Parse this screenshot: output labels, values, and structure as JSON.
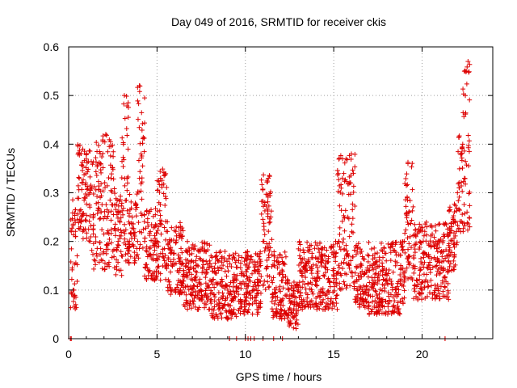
{
  "chart_data": {
    "type": "scatter",
    "title": "Day 049 of 2016, SRMTID for receiver ckis",
    "xlabel": "GPS time / hours",
    "ylabel": "SRMTID / TECUs",
    "xlim": [
      0,
      24
    ],
    "ylim": [
      0,
      0.6
    ],
    "xticks": [
      0,
      5,
      10,
      15,
      20
    ],
    "yticks": [
      0,
      0.1,
      0.2,
      0.3,
      0.4,
      0.5,
      0.6
    ],
    "xtick_labels": [
      "0",
      "5",
      "10",
      "15",
      "20"
    ],
    "ytick_labels": [
      "0",
      "0.1",
      "0.2",
      "0.3",
      "0.4",
      "0.5",
      "0.6"
    ],
    "grid": true,
    "marker": "+",
    "series_color": "#dd0000",
    "series": [
      {
        "name": "SRMTID",
        "points": [
          [
            0.1,
            0.0
          ],
          [
            0.15,
            0.22
          ],
          [
            0.3,
            0.1
          ],
          [
            0.4,
            0.07
          ],
          [
            0.6,
            0.33
          ],
          [
            0.8,
            0.39
          ],
          [
            1.0,
            0.38
          ],
          [
            1.2,
            0.3
          ],
          [
            1.5,
            0.16
          ],
          [
            1.8,
            0.36
          ],
          [
            2.1,
            0.42
          ],
          [
            2.4,
            0.33
          ],
          [
            2.8,
            0.2
          ],
          [
            3.0,
            0.13
          ],
          [
            3.1,
            0.4
          ],
          [
            3.15,
            0.5
          ],
          [
            3.3,
            0.33
          ],
          [
            3.6,
            0.25
          ],
          [
            3.9,
            0.2
          ],
          [
            4.0,
            0.52
          ],
          [
            4.1,
            0.38
          ],
          [
            4.3,
            0.2
          ],
          [
            4.6,
            0.14
          ],
          [
            5.0,
            0.2
          ],
          [
            5.2,
            0.33
          ],
          [
            5.5,
            0.15
          ],
          [
            6.0,
            0.1
          ],
          [
            6.5,
            0.14
          ],
          [
            7.0,
            0.12
          ],
          [
            7.5,
            0.08
          ],
          [
            8.0,
            0.12
          ],
          [
            8.5,
            0.06
          ],
          [
            9.0,
            0.1
          ],
          [
            9.1,
            0.0
          ],
          [
            9.5,
            0.12
          ],
          [
            10.0,
            0.06
          ],
          [
            10.5,
            0.14
          ],
          [
            11.0,
            0.2
          ],
          [
            11.1,
            0.28
          ],
          [
            11.3,
            0.33
          ],
          [
            11.5,
            0.12
          ],
          [
            12.0,
            0.05
          ],
          [
            12.5,
            0.03
          ],
          [
            13.0,
            0.1
          ],
          [
            13.5,
            0.14
          ],
          [
            14.0,
            0.12
          ],
          [
            14.5,
            0.06
          ],
          [
            15.0,
            0.14
          ],
          [
            15.3,
            0.2
          ],
          [
            15.5,
            0.37
          ],
          [
            15.8,
            0.25
          ],
          [
            16.0,
            0.38
          ],
          [
            16.5,
            0.08
          ],
          [
            17.0,
            0.1
          ],
          [
            17.5,
            0.12
          ],
          [
            18.0,
            0.12
          ],
          [
            18.5,
            0.15
          ],
          [
            19.0,
            0.2
          ],
          [
            19.2,
            0.36
          ],
          [
            19.5,
            0.15
          ],
          [
            20.0,
            0.1
          ],
          [
            20.5,
            0.12
          ],
          [
            21.0,
            0.2
          ],
          [
            21.3,
            0.0
          ],
          [
            21.5,
            0.16
          ],
          [
            22.0,
            0.3
          ],
          [
            22.3,
            0.4
          ],
          [
            22.5,
            0.55
          ],
          [
            22.6,
            0.57
          ],
          [
            22.7,
            0.23
          ]
        ]
      }
    ],
    "trend": [
      {
        "x0": 0.1,
        "x1": 0.5,
        "lo": 0.06,
        "hi": 0.29
      },
      {
        "x0": 0.5,
        "x1": 1.3,
        "lo": 0.2,
        "hi": 0.4
      },
      {
        "x0": 1.3,
        "x1": 2.6,
        "lo": 0.14,
        "hi": 0.42
      },
      {
        "x0": 2.6,
        "x1": 3.0,
        "lo": 0.13,
        "hi": 0.3
      },
      {
        "x0": 3.0,
        "x1": 3.4,
        "lo": 0.15,
        "hi": 0.5
      },
      {
        "x0": 3.4,
        "x1": 3.9,
        "lo": 0.15,
        "hi": 0.3
      },
      {
        "x0": 3.9,
        "x1": 4.3,
        "lo": 0.16,
        "hi": 0.52
      },
      {
        "x0": 4.3,
        "x1": 5.0,
        "lo": 0.12,
        "hi": 0.27
      },
      {
        "x0": 5.0,
        "x1": 5.6,
        "lo": 0.12,
        "hi": 0.35
      },
      {
        "x0": 5.6,
        "x1": 6.5,
        "lo": 0.09,
        "hi": 0.24
      },
      {
        "x0": 6.5,
        "x1": 8.0,
        "lo": 0.06,
        "hi": 0.2
      },
      {
        "x0": 8.0,
        "x1": 9.5,
        "lo": 0.04,
        "hi": 0.18
      },
      {
        "x0": 9.5,
        "x1": 10.9,
        "lo": 0.05,
        "hi": 0.18
      },
      {
        "x0": 10.9,
        "x1": 11.5,
        "lo": 0.1,
        "hi": 0.34
      },
      {
        "x0": 11.5,
        "x1": 12.4,
        "lo": 0.04,
        "hi": 0.18
      },
      {
        "x0": 12.4,
        "x1": 13.0,
        "lo": 0.02,
        "hi": 0.12
      },
      {
        "x0": 13.0,
        "x1": 15.2,
        "lo": 0.06,
        "hi": 0.2
      },
      {
        "x0": 15.2,
        "x1": 16.2,
        "lo": 0.1,
        "hi": 0.38
      },
      {
        "x0": 16.2,
        "x1": 17.0,
        "lo": 0.06,
        "hi": 0.2
      },
      {
        "x0": 17.0,
        "x1": 19.0,
        "lo": 0.05,
        "hi": 0.2
      },
      {
        "x0": 19.0,
        "x1": 19.5,
        "lo": 0.12,
        "hi": 0.37
      },
      {
        "x0": 19.5,
        "x1": 21.5,
        "lo": 0.08,
        "hi": 0.24
      },
      {
        "x0": 21.5,
        "x1": 22.0,
        "lo": 0.14,
        "hi": 0.28
      },
      {
        "x0": 22.0,
        "x1": 22.3,
        "lo": 0.22,
        "hi": 0.42
      },
      {
        "x0": 22.3,
        "x1": 22.7,
        "lo": 0.22,
        "hi": 0.57
      }
    ],
    "zero_points_x": [
      0.1,
      0.15,
      9.1,
      9.5,
      10.0,
      10.15,
      10.3,
      10.5,
      11.0,
      11.6,
      12.1,
      21.3
    ]
  }
}
